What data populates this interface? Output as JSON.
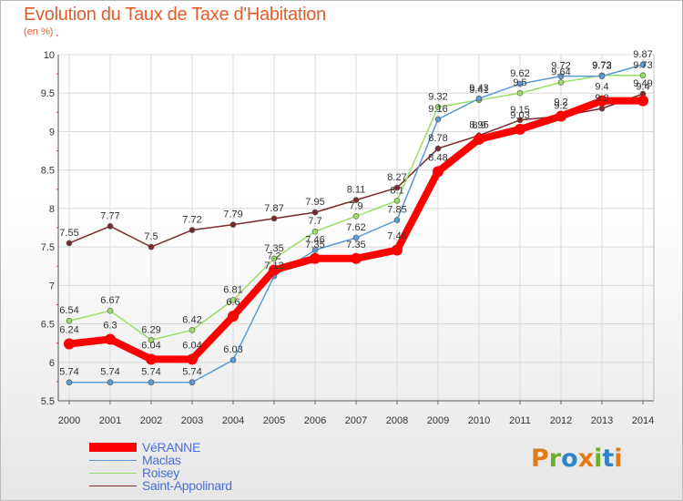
{
  "header": {
    "title": "Evolution du Taux de Taxe d'Habitation",
    "subtitle": "(en %)"
  },
  "logo": {
    "text": "Proxiti",
    "colors": [
      "#e07b1c",
      "#6bb02a",
      "#2e86c8",
      "#e07b1c",
      "#6bb02a",
      "#2e86c8",
      "#e07b1c"
    ]
  },
  "colors": {
    "accent": "#e05d2a",
    "legend_text": "#4a6fd6"
  },
  "chart_data": {
    "type": "line",
    "title": "Evolution du Taux de Taxe d'Habitation",
    "subtitle": "(en %)",
    "xlabel": "",
    "ylabel": "(en %)",
    "categories": [
      "2000",
      "2001",
      "2002",
      "2003",
      "2004",
      "2005",
      "2006",
      "2007",
      "2008",
      "2009",
      "2010",
      "2011",
      "2012",
      "2013",
      "2014"
    ],
    "yticks": [
      "5.5",
      "6",
      "6.5",
      "7",
      "7.5",
      "8",
      "8.5",
      "9",
      "9.5",
      "10"
    ],
    "ylim": [
      5.5,
      10
    ],
    "grid": true,
    "legend_position": "bottom",
    "series": [
      {
        "name": "VéRANNE",
        "color": "#ff0000",
        "values": [
          6.24,
          6.3,
          6.04,
          6.04,
          6.6,
          7.2,
          7.35,
          7.35,
          7.46,
          8.48,
          8.9,
          9.03,
          9.2,
          9.4,
          9.4
        ],
        "labels": [
          "6.24",
          "6.3",
          "6.04",
          "6.04",
          "6.6",
          "7.2",
          "7.35",
          "7.35",
          "7.46",
          "8.48",
          "8.9",
          "9.03",
          "9.2",
          "9.4",
          "9.4"
        ]
      },
      {
        "name": "Maclas",
        "color": "#5b9bd5",
        "values": [
          5.74,
          5.74,
          5.74,
          5.74,
          6.03,
          7.12,
          7.46,
          7.62,
          7.85,
          9.16,
          9.43,
          9.62,
          9.72,
          9.72,
          9.87
        ],
        "labels": [
          "5.74",
          "5.74",
          "5.74",
          "5.74",
          "6.03",
          "7.12",
          "7.46",
          "7.62",
          "7.85",
          "9.16",
          "9.43",
          "9.62",
          "9.72",
          "9.72",
          "9.87"
        ]
      },
      {
        "name": "Roisey",
        "color": "#99dd66",
        "values": [
          6.54,
          6.67,
          6.29,
          6.42,
          6.81,
          7.35,
          7.7,
          7.9,
          8.1,
          9.32,
          9.41,
          9.5,
          9.64,
          9.73,
          9.73
        ],
        "labels": [
          "6.54",
          "6.67",
          "6.29",
          "6.42",
          "6.81",
          "7.35",
          "7.7",
          "7.9",
          "8.1",
          "9.32",
          "9.41",
          "9.5",
          "9.64",
          "9.73",
          "9.73"
        ]
      },
      {
        "name": "Saint-Appolinard",
        "color": "#7b2a2a",
        "values": [
          7.55,
          7.77,
          7.5,
          7.72,
          7.79,
          7.87,
          7.95,
          8.11,
          8.27,
          8.78,
          8.95,
          9.15,
          9.2,
          9.3,
          9.49
        ],
        "labels": [
          "7.55",
          "7.77",
          "7.5",
          "7.72",
          "7.79",
          "7.87",
          "7.95",
          "8.11",
          "8.27",
          "8.78",
          "8.95",
          "9.15",
          "9.2",
          "9.3",
          "9.49"
        ]
      }
    ]
  }
}
